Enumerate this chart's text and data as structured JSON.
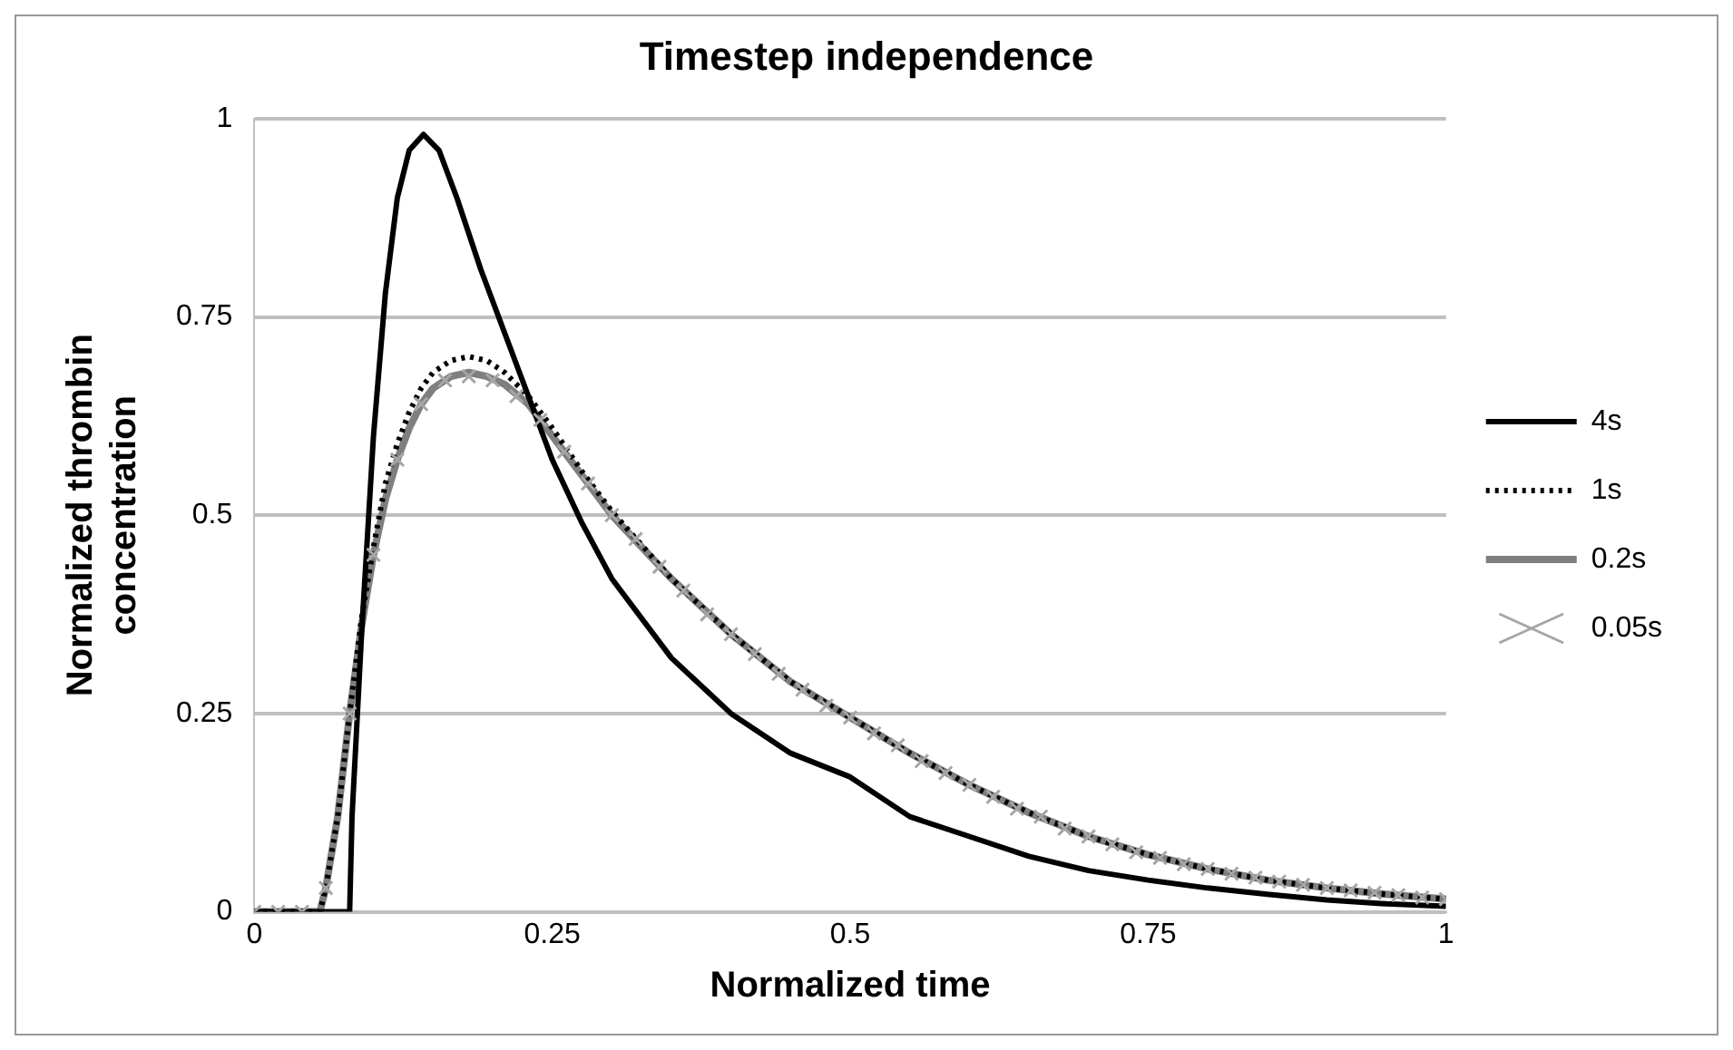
{
  "chart_data": {
    "type": "line",
    "title": "Timestep independence",
    "xlabel": "Normalized time",
    "ylabel": "Normalized thrombin concentration",
    "xlim": [
      0,
      1
    ],
    "xticks": [
      0,
      0.25,
      0.5,
      0.75,
      1
    ],
    "ylim": [
      0,
      1
    ],
    "yticks": [
      0,
      0.25,
      0.5,
      0.75,
      1
    ],
    "grid": "y",
    "legend": "right",
    "series": [
      {
        "name": "4s",
        "color": "#000000",
        "line_style": "solid",
        "marker": "none",
        "x": [
          0,
          0.07,
          0.08,
          0.082,
          0.09,
          0.1,
          0.11,
          0.12,
          0.13,
          0.142,
          0.155,
          0.17,
          0.19,
          0.21,
          0.23,
          0.25,
          0.275,
          0.3,
          0.35,
          0.4,
          0.45,
          0.5,
          0.55,
          0.6,
          0.65,
          0.7,
          0.75,
          0.8,
          0.85,
          0.9,
          0.95,
          1
        ],
        "values": [
          0,
          0,
          0,
          0.12,
          0.35,
          0.6,
          0.78,
          0.9,
          0.96,
          0.98,
          0.96,
          0.9,
          0.81,
          0.73,
          0.65,
          0.57,
          0.49,
          0.42,
          0.32,
          0.25,
          0.2,
          0.17,
          0.12,
          0.095,
          0.07,
          0.052,
          0.04,
          0.03,
          0.022,
          0.015,
          0.01,
          0.007
        ]
      },
      {
        "name": "1s",
        "color": "#000000",
        "line_style": "dotted",
        "marker": "none",
        "x": [
          0,
          0.055,
          0.06,
          0.07,
          0.08,
          0.09,
          0.1,
          0.11,
          0.12,
          0.13,
          0.14,
          0.15,
          0.165,
          0.18,
          0.195,
          0.21,
          0.23,
          0.25,
          0.275,
          0.3,
          0.35,
          0.4,
          0.45,
          0.5,
          0.55,
          0.6,
          0.65,
          0.7,
          0.75,
          0.8,
          0.85,
          0.9,
          0.95,
          1
        ],
        "values": [
          0,
          0,
          0.03,
          0.12,
          0.25,
          0.37,
          0.46,
          0.54,
          0.59,
          0.63,
          0.66,
          0.68,
          0.695,
          0.7,
          0.695,
          0.68,
          0.65,
          0.61,
          0.555,
          0.505,
          0.42,
          0.35,
          0.29,
          0.245,
          0.2,
          0.16,
          0.125,
          0.095,
          0.072,
          0.054,
          0.04,
          0.03,
          0.022,
          0.016
        ]
      },
      {
        "name": "0.2s",
        "color": "#7f7f7f",
        "line_style": "solid",
        "marker": "none",
        "x": [
          0,
          0.055,
          0.06,
          0.07,
          0.08,
          0.09,
          0.1,
          0.11,
          0.12,
          0.13,
          0.14,
          0.15,
          0.165,
          0.18,
          0.195,
          0.21,
          0.23,
          0.25,
          0.275,
          0.3,
          0.35,
          0.4,
          0.45,
          0.5,
          0.55,
          0.6,
          0.65,
          0.7,
          0.75,
          0.8,
          0.85,
          0.9,
          0.95,
          1
        ],
        "values": [
          0,
          0,
          0.03,
          0.12,
          0.25,
          0.36,
          0.45,
          0.52,
          0.57,
          0.61,
          0.64,
          0.66,
          0.675,
          0.68,
          0.675,
          0.665,
          0.64,
          0.6,
          0.55,
          0.5,
          0.42,
          0.35,
          0.29,
          0.245,
          0.2,
          0.16,
          0.125,
          0.095,
          0.072,
          0.054,
          0.04,
          0.03,
          0.022,
          0.016
        ]
      },
      {
        "name": "0.05s",
        "type": "scatter",
        "color": "#a6a6a6",
        "marker": "cross",
        "x": [
          0,
          0.02,
          0.04,
          0.06,
          0.08,
          0.1,
          0.12,
          0.14,
          0.16,
          0.18,
          0.2,
          0.22,
          0.24,
          0.26,
          0.28,
          0.3,
          0.32,
          0.34,
          0.36,
          0.38,
          0.4,
          0.42,
          0.44,
          0.46,
          0.48,
          0.5,
          0.52,
          0.54,
          0.56,
          0.58,
          0.6,
          0.62,
          0.64,
          0.66,
          0.68,
          0.7,
          0.72,
          0.74,
          0.76,
          0.78,
          0.8,
          0.82,
          0.84,
          0.86,
          0.88,
          0.9,
          0.92,
          0.94,
          0.96,
          0.98,
          1
        ],
        "values": [
          0,
          0,
          0,
          0.03,
          0.25,
          0.45,
          0.57,
          0.64,
          0.67,
          0.675,
          0.67,
          0.65,
          0.62,
          0.58,
          0.54,
          0.5,
          0.47,
          0.435,
          0.405,
          0.375,
          0.35,
          0.325,
          0.3,
          0.28,
          0.26,
          0.245,
          0.225,
          0.21,
          0.19,
          0.175,
          0.16,
          0.145,
          0.13,
          0.12,
          0.105,
          0.095,
          0.085,
          0.075,
          0.068,
          0.06,
          0.054,
          0.048,
          0.043,
          0.038,
          0.034,
          0.03,
          0.027,
          0.024,
          0.021,
          0.018,
          0.016
        ]
      }
    ]
  }
}
